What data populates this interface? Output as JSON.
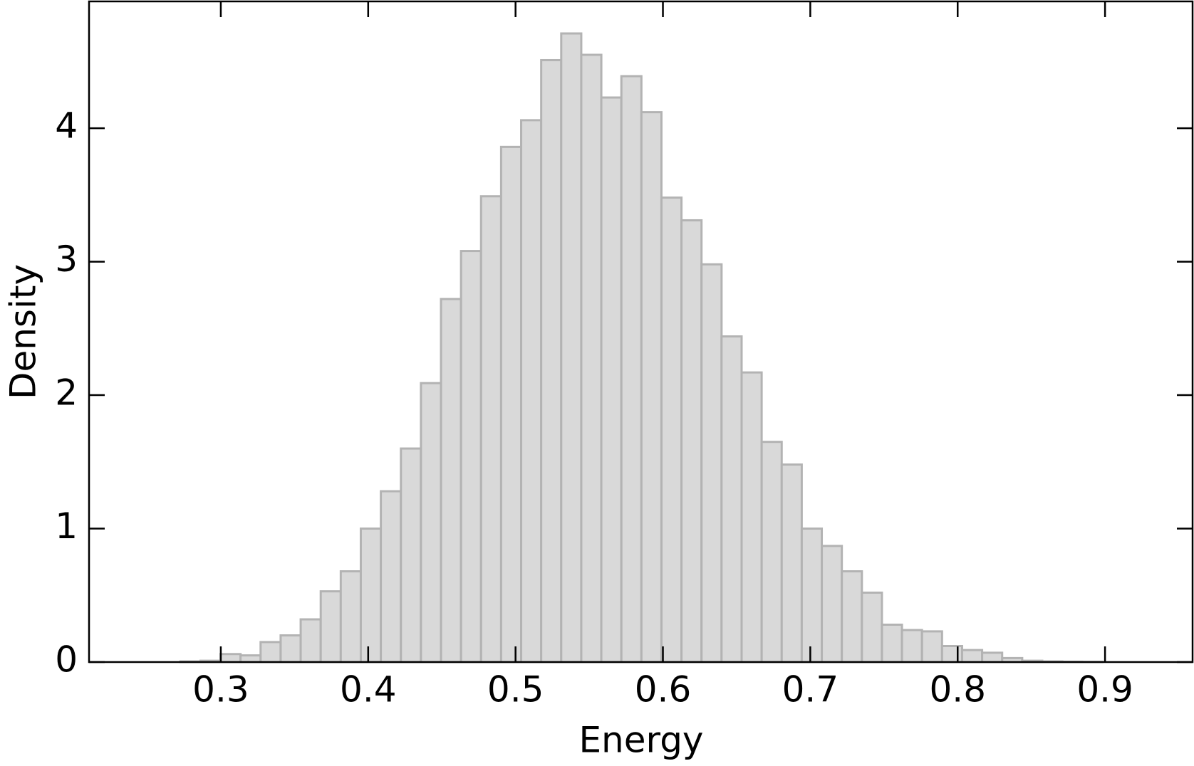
{
  "chart_data": {
    "type": "histogram",
    "xlabel": "Energy",
    "ylabel": "Density",
    "bins": [
      0.2726,
      0.2862,
      0.2998,
      0.3134,
      0.327,
      0.3406,
      0.3542,
      0.3678,
      0.3814,
      0.395,
      0.4086,
      0.4222,
      0.4358,
      0.4494,
      0.463,
      0.4766,
      0.4902,
      0.5038,
      0.5174,
      0.531,
      0.5446,
      0.5582,
      0.5718,
      0.5854,
      0.599,
      0.6126,
      0.6262,
      0.6398,
      0.6534,
      0.667,
      0.6806,
      0.6942,
      0.7078,
      0.7214,
      0.735,
      0.7486,
      0.7622,
      0.7758,
      0.7894,
      0.803,
      0.8166,
      0.8302,
      0.8438,
      0.8574,
      0.871,
      0.8846,
      0.8982
    ],
    "values": [
      0.005,
      0.01,
      0.06,
      0.05,
      0.15,
      0.2,
      0.32,
      0.53,
      0.68,
      1.0,
      1.28,
      1.6,
      2.09,
      2.72,
      3.08,
      3.49,
      3.86,
      4.06,
      4.51,
      4.71,
      4.55,
      4.23,
      4.39,
      4.12,
      3.48,
      3.31,
      2.98,
      2.44,
      2.17,
      1.65,
      1.48,
      1.0,
      0.87,
      0.68,
      0.52,
      0.28,
      0.24,
      0.23,
      0.12,
      0.09,
      0.07,
      0.03,
      0.01,
      0.005,
      0.003,
      0.002
    ],
    "color": "#d9d9d9",
    "edgecolor": "#b3b3b3",
    "xlim": [
      0.2106,
      0.9594
    ],
    "xticks": [
      0.3,
      0.4,
      0.5,
      0.6,
      0.7,
      0.8,
      0.9
    ],
    "ylim": [
      0,
      4.95
    ],
    "yticks": [
      0,
      1,
      2,
      3,
      4
    ]
  }
}
